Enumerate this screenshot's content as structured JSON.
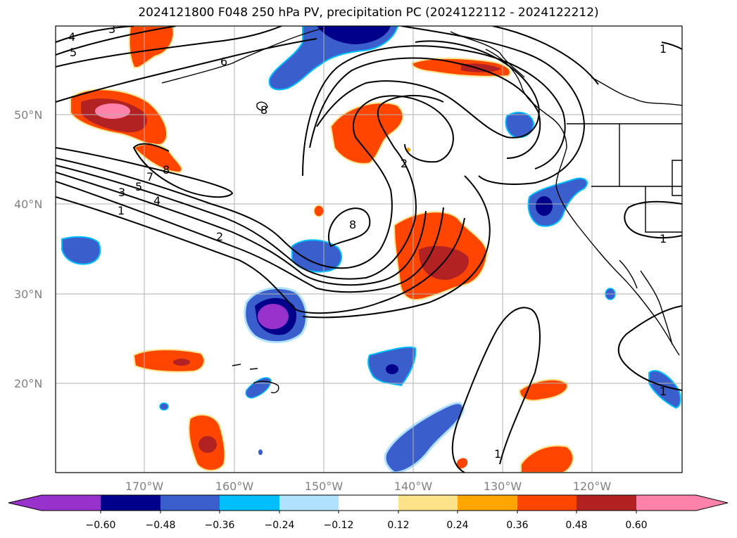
{
  "title": "2024121800 F048 250 hPa PV, precipitation PC (2024122112 - 2024122212)",
  "lon_ticks": [
    "170°W",
    "160°W",
    "150°W",
    "140°W",
    "130°W",
    "120°W"
  ],
  "lat_ticks": [
    "50°N",
    "40°N",
    "30°N",
    "20°N"
  ],
  "colorbar": {
    "ticks": [
      "−0.60",
      "−0.48",
      "−0.36",
      "−0.24",
      "−0.12",
      "0.12",
      "0.24",
      "0.36",
      "0.48",
      "0.60"
    ],
    "colors": [
      "#9932cc",
      "#00008b",
      "#3a5fcd",
      "#00bfff",
      "#b0e2ff",
      "#ffffff",
      "#fce38a",
      "#ffa500",
      "#ff4500",
      "#b22222",
      "#ff82ab"
    ]
  },
  "contour_labels": [
    "4",
    "3",
    "5",
    "6",
    "7",
    "8",
    "3",
    "5",
    "4",
    "1",
    "2",
    "8",
    "2",
    "8",
    "1",
    "1",
    "1",
    "1"
  ],
  "legend_colors": {
    "positive_strong": "#b22222",
    "positive": "#ff4500",
    "negative": "#3a5fcd",
    "negative_strong": "#00008b",
    "negative_extreme": "#9932cc",
    "positive_extreme": "#ff82ab"
  }
}
